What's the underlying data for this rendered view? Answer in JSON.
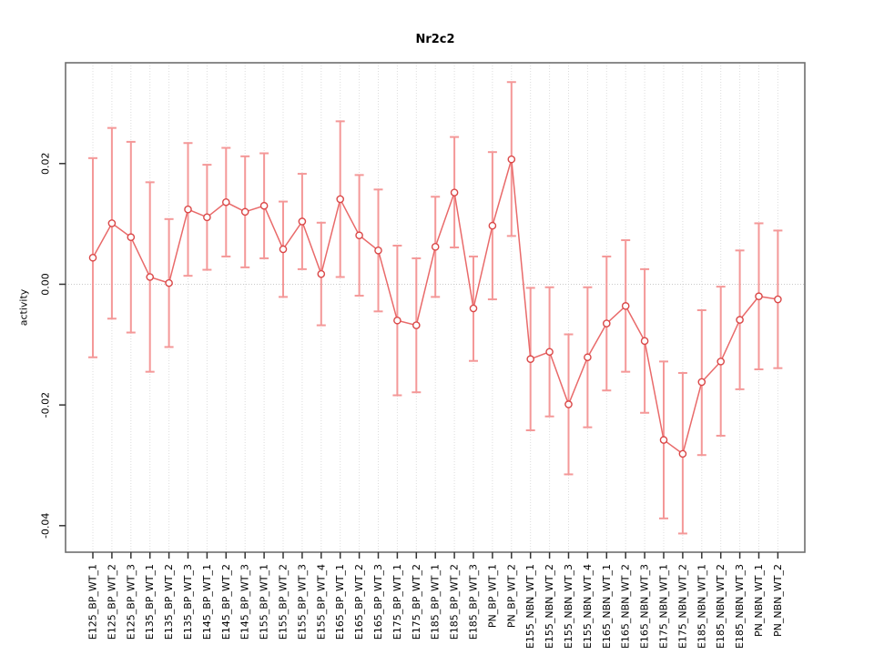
{
  "chart_data": {
    "type": "scatter",
    "title": "Nr2c2",
    "xlabel": "",
    "ylabel": "activity",
    "legend": "none",
    "marker": "open-circle",
    "error_bars": true,
    "grid": "vertical dotted gridline at every category; horizontal dotted line at y=0",
    "ylim": [
      -0.0444,
      0.0367
    ],
    "yticks": [
      0.02,
      0.0,
      -0.02,
      -0.04
    ],
    "ytick_labels": [
      "0.02",
      "0.00",
      "-0.02",
      "-0.04"
    ],
    "categories": [
      "E125_BP_WT_1",
      "E125_BP_WT_2",
      "E125_BP_WT_3",
      "E135_BP_WT_1",
      "E135_BP_WT_2",
      "E135_BP_WT_3",
      "E145_BP_WT_1",
      "E145_BP_WT_2",
      "E145_BP_WT_3",
      "E155_BP_WT_1",
      "E155_BP_WT_2",
      "E155_BP_WT_3",
      "E155_BP_WT_4",
      "E165_BP_WT_1",
      "E165_BP_WT_2",
      "E165_BP_WT_3",
      "E175_BP_WT_1",
      "E175_BP_WT_2",
      "E185_BP_WT_1",
      "E185_BP_WT_2",
      "E185_BP_WT_3",
      "PN_BP_WT_1",
      "PN_BP_WT_2",
      "E155_NBN_WT_1",
      "E155_NBN_WT_2",
      "E155_NBN_WT_3",
      "E155_NBN_WT_4",
      "E165_NBN_WT_1",
      "E165_NBN_WT_2",
      "E165_NBN_WT_3",
      "E175_NBN_WT_1",
      "E175_NBN_WT_2",
      "E185_NBN_WT_1",
      "E185_NBN_WT_2",
      "E185_NBN_WT_3",
      "PN_NBN_WT_1",
      "PN_NBN_WT_2"
    ],
    "series": [
      {
        "name": "activity",
        "values": [
          0.0044,
          0.0101,
          0.0078,
          0.0012,
          0.0002,
          0.0124,
          0.0111,
          0.0136,
          0.012,
          0.013,
          0.0058,
          0.0104,
          0.0017,
          0.0141,
          0.0081,
          0.0056,
          -0.006,
          -0.0068,
          0.0062,
          0.0152,
          -0.004,
          0.0097,
          0.0207,
          -0.0124,
          -0.0112,
          -0.0199,
          -0.0121,
          -0.0065,
          -0.0036,
          -0.0094,
          -0.0258,
          -0.0281,
          -0.0162,
          -0.0128,
          -0.0059,
          -0.002,
          -0.0025
        ],
        "ci_low": [
          -0.0121,
          -0.0057,
          -0.008,
          -0.0145,
          -0.0104,
          0.0014,
          0.0024,
          0.0046,
          0.0028,
          0.0043,
          -0.0021,
          0.0025,
          -0.0068,
          0.0012,
          -0.0019,
          -0.0045,
          -0.0184,
          -0.0179,
          -0.0021,
          0.0061,
          -0.0127,
          -0.0025,
          0.008,
          -0.0242,
          -0.0219,
          -0.0315,
          -0.0237,
          -0.0176,
          -0.0145,
          -0.0213,
          -0.0388,
          -0.0413,
          -0.0283,
          -0.0251,
          -0.0174,
          -0.0141,
          -0.0139
        ],
        "ci_high": [
          0.0209,
          0.0259,
          0.0236,
          0.0169,
          0.0108,
          0.0234,
          0.0198,
          0.0226,
          0.0212,
          0.0217,
          0.0137,
          0.0183,
          0.0102,
          0.027,
          0.0181,
          0.0157,
          0.0064,
          0.0043,
          0.0145,
          0.0244,
          0.0046,
          0.0219,
          0.0335,
          -0.0006,
          -0.0005,
          -0.0083,
          -0.0005,
          0.0046,
          0.0073,
          0.0025,
          -0.0128,
          -0.0147,
          -0.0043,
          -0.0004,
          0.0056,
          0.0101,
          0.0089
        ]
      }
    ],
    "colors": {
      "error_bar": "#f49898",
      "line": "#e96a6a",
      "marker": "#da4848",
      "marker_fill": "#ffffff",
      "grid": "#dcdcdc",
      "zero_line": "#c9c9c9",
      "box": "#6e6e6e",
      "tick": "#333333",
      "text": "#000000"
    }
  }
}
